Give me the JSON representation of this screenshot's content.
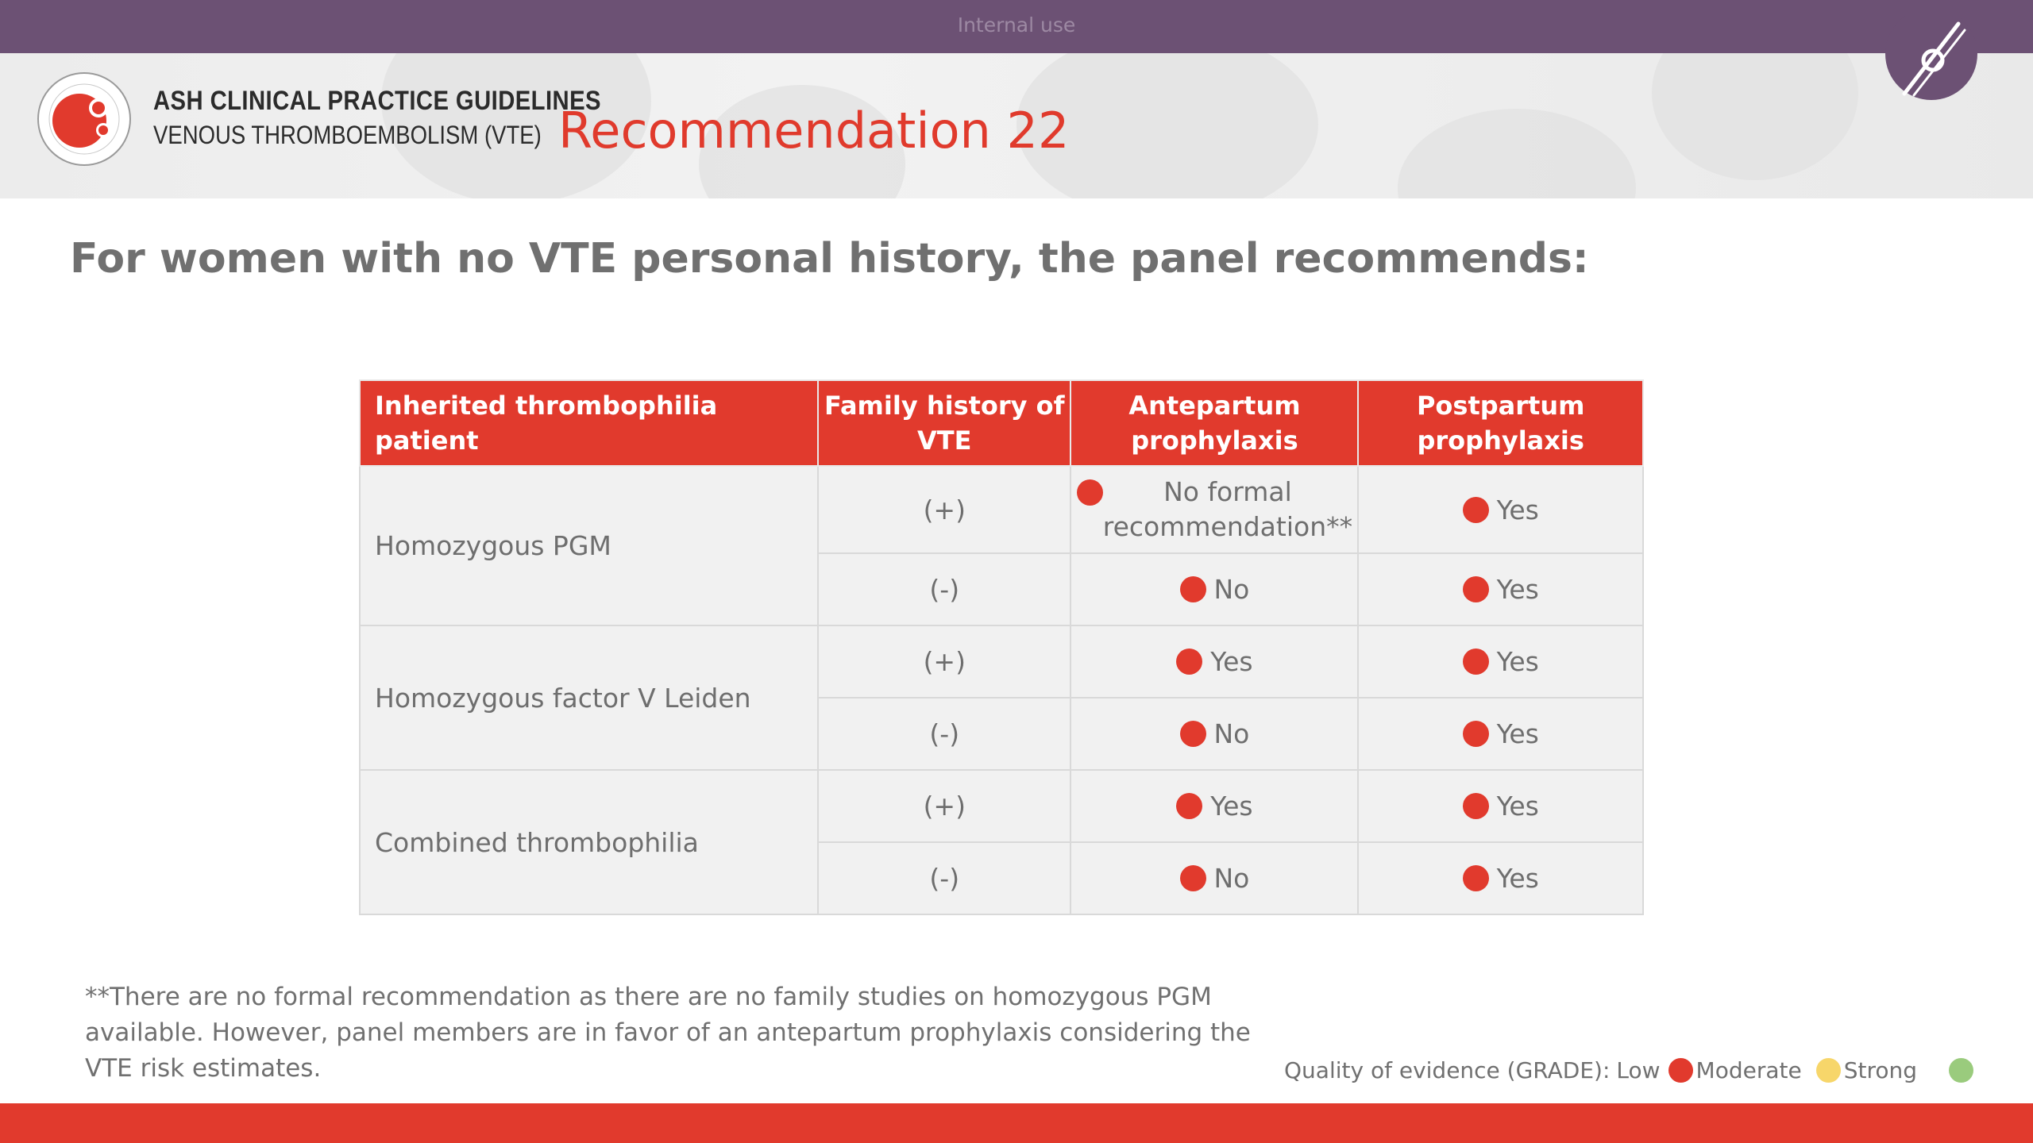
{
  "banner": {
    "label": "Internal use"
  },
  "header": {
    "org_line1": "ASH CLINICAL PRACTICE GUIDELINES",
    "org_line2": "VENOUS THROMBOEMBOLISM (VTE)",
    "title": "Recommendation 22"
  },
  "heading": "For women with no VTE personal history, the panel recommends:",
  "table": {
    "columns": [
      "Inherited thrombophilia patient",
      "Family history of VTE",
      "Antepartum prophylaxis",
      "Postpartum prophylaxis"
    ],
    "groups": [
      {
        "patient": "Homozygous PGM",
        "rows": [
          {
            "family": "(+)",
            "antepartum": "No formal recommendation**",
            "postpartum": "Yes"
          },
          {
            "family": "(-)",
            "antepartum": "No",
            "postpartum": "Yes"
          }
        ]
      },
      {
        "patient": "Homozygous factor V Leiden",
        "rows": [
          {
            "family": "(+)",
            "antepartum": "Yes",
            "postpartum": "Yes"
          },
          {
            "family": "(-)",
            "antepartum": "No",
            "postpartum": "Yes"
          }
        ]
      },
      {
        "patient": "Combined thrombophilia",
        "rows": [
          {
            "family": "(+)",
            "antepartum": "Yes",
            "postpartum": "Yes"
          },
          {
            "family": "(-)",
            "antepartum": "No",
            "postpartum": "Yes"
          }
        ]
      }
    ]
  },
  "footnote": "**There are no formal recommendation as there are no family studies on homozygous PGM available. However, panel members are in favor of an antepartum prophylaxis considering the VTE risk estimates.",
  "legend": {
    "label": "Quality of evidence (GRADE):",
    "low": "Low",
    "moderate": "Moderate",
    "strong": "Strong"
  },
  "colors": {
    "brand_red": "#e13a2d",
    "banner_purple": "#6c5174",
    "grade_low": "#e13a2d",
    "grade_moderate": "#f7d66a",
    "grade_strong": "#9acb7d"
  }
}
